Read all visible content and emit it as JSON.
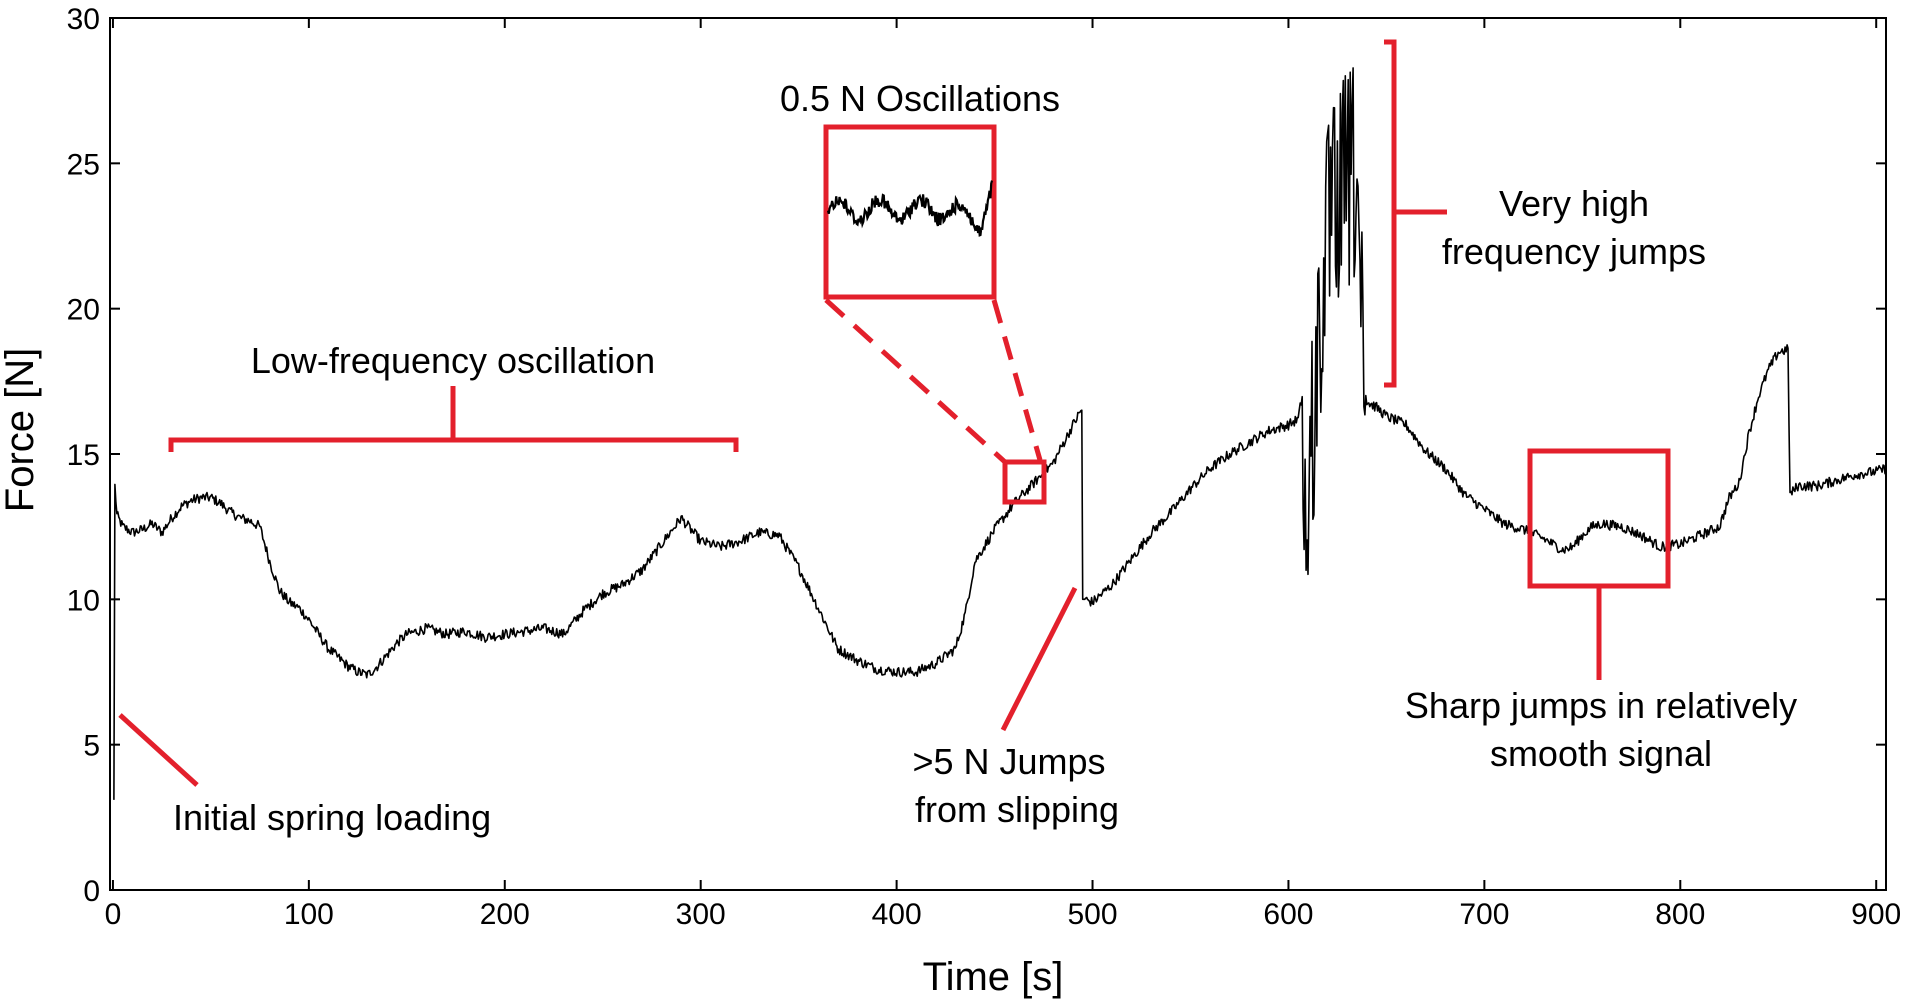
{
  "chart_data": {
    "type": "line",
    "xlabel": "Time [s]",
    "ylabel": "Force [N]",
    "xlim": [
      -1.5,
      905
    ],
    "ylim": [
      0,
      30
    ],
    "x_ticks": [
      0,
      100,
      200,
      300,
      400,
      500,
      600,
      700,
      800,
      900
    ],
    "y_ticks": [
      0,
      5,
      10,
      15,
      20,
      25,
      30
    ],
    "grid": false,
    "series": [
      {
        "color": "#000000",
        "x": [
          0.5,
          1,
          2,
          5,
          10,
          15,
          20,
          25,
          30,
          35,
          40,
          45,
          50,
          55,
          60,
          65,
          70,
          75,
          80,
          85,
          90,
          95,
          100,
          105,
          110,
          115,
          120,
          125,
          130,
          135,
          140,
          145,
          150,
          155,
          160,
          170,
          180,
          190,
          200,
          210,
          220,
          230,
          240,
          250,
          260,
          270,
          280,
          290,
          300,
          310,
          320,
          330,
          340,
          350,
          360,
          370,
          380,
          390,
          400,
          410,
          420,
          430,
          435,
          440,
          450,
          460,
          470,
          480,
          490,
          495,
          496,
          500,
          510,
          520,
          530,
          540,
          550,
          560,
          570,
          580,
          590,
          600,
          605,
          608,
          610,
          615,
          620,
          625,
          630,
          635,
          640,
          645,
          650,
          660,
          670,
          680,
          690,
          700,
          710,
          720,
          730,
          740,
          745,
          750,
          755,
          760,
          770,
          780,
          790,
          800,
          810,
          820,
          825,
          830,
          835,
          840,
          845,
          850,
          855,
          856,
          860,
          870,
          880,
          890,
          900,
          905
        ],
        "y": [
          3.1,
          13.9,
          12.9,
          12.5,
          12.3,
          12.4,
          12.6,
          12.3,
          12.8,
          13.2,
          13.4,
          13.5,
          13.5,
          13.3,
          13.0,
          12.8,
          12.7,
          12.5,
          11.3,
          10.3,
          9.9,
          9.7,
          9.3,
          8.8,
          8.3,
          8.0,
          7.7,
          7.5,
          7.4,
          7.7,
          8.1,
          8.5,
          8.8,
          8.9,
          9.0,
          8.8,
          8.9,
          8.7,
          8.8,
          8.9,
          9.0,
          8.8,
          9.6,
          10.2,
          10.5,
          11.0,
          11.9,
          12.8,
          12.0,
          11.8,
          12.0,
          12.3,
          12.2,
          11.1,
          9.7,
          8.3,
          7.9,
          7.6,
          7.5,
          7.5,
          7.8,
          8.3,
          9.5,
          11.3,
          12.4,
          13.3,
          14.0,
          14.7,
          16.0,
          16.6,
          10.0,
          9.9,
          10.5,
          11.4,
          12.3,
          13.0,
          13.8,
          14.5,
          15.0,
          15.4,
          15.8,
          16.0,
          16.2,
          17.4,
          16.9,
          22.5,
          26.5,
          27.5,
          28.3,
          28.7,
          16.8,
          16.6,
          16.3,
          16.0,
          15.1,
          14.5,
          13.6,
          13.1,
          12.6,
          12.4,
          12.1,
          11.7,
          11.8,
          12.2,
          12.5,
          12.6,
          12.5,
          12.2,
          11.8,
          11.9,
          12.2,
          12.5,
          13.5,
          14.0,
          15.7,
          17.0,
          17.9,
          18.5,
          18.6,
          13.6,
          13.9,
          13.9,
          14.1,
          14.3,
          14.4,
          14.5
        ]
      }
    ],
    "annotations": {
      "low_freq": "Low-frequency oscillation",
      "oscillations": "0.5 N Oscillations",
      "high_freq_line1": "Very high",
      "high_freq_line2": "frequency jumps",
      "jumps_line1": ">5 N Jumps",
      "jumps_line2": "from slipping",
      "sharp_line1": "Sharp jumps in relatively",
      "sharp_line2": "smooth signal",
      "initial": "Initial spring loading"
    },
    "annotation_color": "#e3202c"
  }
}
